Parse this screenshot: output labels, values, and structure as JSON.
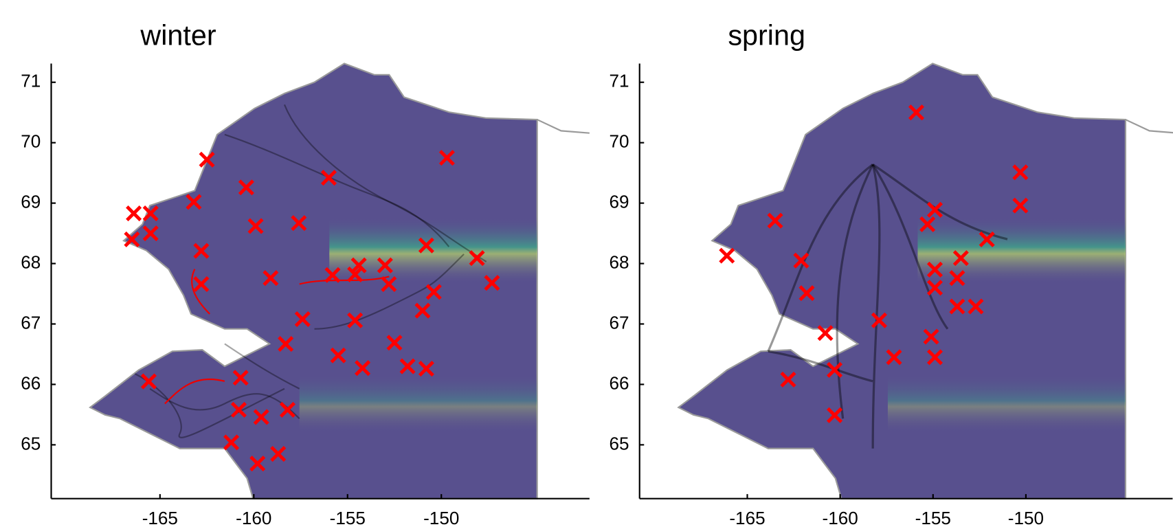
{
  "chart_data": [
    {
      "type": "scatter",
      "title": "winter",
      "marker": "x",
      "color": "#ff0000",
      "x": [
        -162.5,
        -149.7,
        -160.4,
        -156.0,
        -166.4,
        -165.5,
        -159.9,
        -157.6,
        -165.5,
        -166.5,
        -163.2,
        -162.8,
        -150.8,
        -148.1,
        -147.3,
        -159.1,
        -155.8,
        -154.6,
        -154.4,
        -153.0,
        -152.8,
        -150.4,
        -151.0,
        -157.4,
        -154.6,
        -162.8,
        -158.3,
        -155.5,
        -152.5,
        -151.8,
        -150.8,
        -154.2,
        -160.7,
        -160.8,
        -159.6,
        -158.2,
        -161.2,
        -159.8,
        -158.7,
        -165.6
      ],
      "y": [
        69.72,
        69.75,
        69.26,
        69.42,
        68.83,
        68.83,
        68.62,
        68.67,
        68.5,
        68.4,
        69.02,
        68.21,
        68.3,
        68.09,
        67.68,
        67.76,
        67.81,
        67.82,
        67.97,
        67.97,
        67.66,
        67.53,
        67.22,
        67.08,
        67.06,
        67.66,
        66.67,
        66.48,
        66.69,
        66.3,
        66.26,
        66.27,
        66.11,
        65.58,
        65.46,
        65.58,
        65.04,
        64.69,
        64.85,
        66.05
      ],
      "xlim": [
        -170.8,
        -142.1
      ],
      "ylim": [
        64.11,
        71.31
      ],
      "xticks": [
        -165,
        -160,
        -155,
        -150
      ],
      "yticks": [
        65,
        66,
        67,
        68,
        69,
        70,
        71
      ]
    },
    {
      "type": "scatter",
      "title": "spring",
      "marker": "x",
      "color": "#ff0000",
      "x": [
        -166.1,
        -163.5,
        -162.1,
        -161.8,
        -155.9,
        -150.3,
        -150.3,
        -154.9,
        -155.3,
        -152.1,
        -153.5,
        -154.9,
        -153.7,
        -154.9,
        -153.7,
        -152.7,
        -157.9,
        -160.8,
        -155.1,
        -154.9,
        -157.1,
        -160.3,
        -162.8,
        -160.3
      ],
      "y": [
        68.13,
        68.71,
        68.05,
        67.51,
        70.5,
        69.51,
        68.96,
        68.89,
        68.65,
        68.4,
        68.09,
        67.9,
        67.76,
        67.6,
        67.29,
        67.29,
        67.06,
        66.85,
        66.79,
        66.45,
        66.45,
        66.24,
        66.08,
        65.49
      ],
      "xlim": [
        -170.8,
        -142.1
      ],
      "ylim": [
        64.11,
        71.31
      ],
      "xticks": [
        -165,
        -160,
        -155,
        -150
      ],
      "yticks": [
        65,
        66,
        67,
        68,
        69,
        70,
        71
      ]
    }
  ]
}
